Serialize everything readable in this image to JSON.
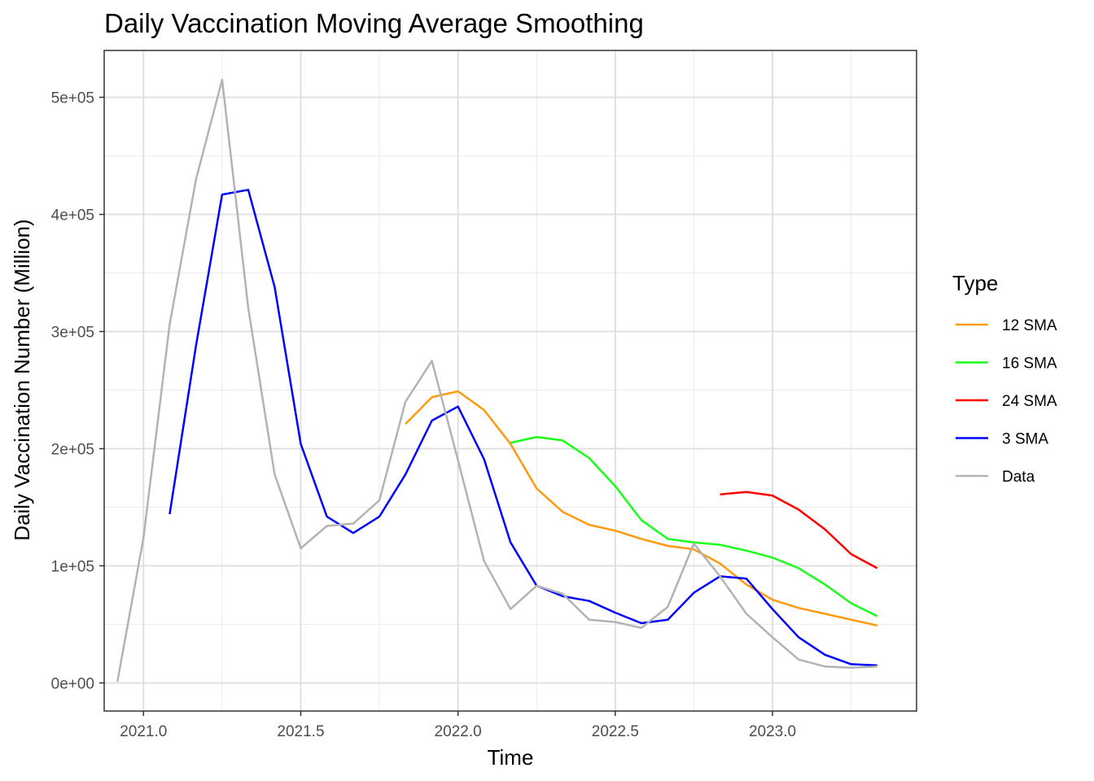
{
  "chart_data": {
    "type": "line",
    "title": "Daily Vaccination Moving Average Smoothing",
    "xlabel": "Time",
    "ylabel": "Daily Vaccination Number (Million)",
    "xlim": [
      2020.875,
      2023.458
    ],
    "ylim": [
      -24000,
      540000
    ],
    "x_ticks": [
      2021.0,
      2021.5,
      2022.0,
      2022.5,
      2023.0
    ],
    "x_tick_labels": [
      "2021.0",
      "2021.5",
      "2022.0",
      "2022.5",
      "2023.0"
    ],
    "y_ticks": [
      0,
      100000,
      200000,
      300000,
      400000,
      500000
    ],
    "y_tick_labels": [
      "0e+00",
      "1e+05",
      "2e+05",
      "3e+05",
      "4e+05",
      "5e+05"
    ],
    "grid": true,
    "legend": {
      "title": "Type",
      "position": "right"
    },
    "series": [
      {
        "name": "12 SMA",
        "color": "#ff9a0e",
        "points": [
          [
            2021.833,
            221000
          ],
          [
            2021.917,
            244000
          ],
          [
            2022.0,
            249000
          ],
          [
            2022.083,
            233000
          ],
          [
            2022.167,
            204000
          ],
          [
            2022.25,
            166000
          ],
          [
            2022.333,
            146000
          ],
          [
            2022.417,
            135000
          ],
          [
            2022.5,
            130000
          ],
          [
            2022.583,
            123000
          ],
          [
            2022.667,
            117000
          ],
          [
            2022.75,
            114000
          ],
          [
            2022.833,
            102000
          ],
          [
            2022.917,
            84000
          ],
          [
            2023.0,
            71000
          ],
          [
            2023.083,
            64000
          ],
          [
            2023.167,
            59000
          ],
          [
            2023.25,
            54000
          ],
          [
            2023.333,
            49000
          ]
        ]
      },
      {
        "name": "16 SMA",
        "color": "#1aff1a",
        "points": [
          [
            2022.167,
            205000
          ],
          [
            2022.25,
            210000
          ],
          [
            2022.333,
            207000
          ],
          [
            2022.417,
            192000
          ],
          [
            2022.5,
            168000
          ],
          [
            2022.583,
            139000
          ],
          [
            2022.667,
            123000
          ],
          [
            2022.75,
            120000
          ],
          [
            2022.833,
            118000
          ],
          [
            2022.917,
            113000
          ],
          [
            2023.0,
            107000
          ],
          [
            2023.083,
            98000
          ],
          [
            2023.167,
            84000
          ],
          [
            2023.25,
            68000
          ],
          [
            2023.333,
            57000
          ]
        ]
      },
      {
        "name": "24 SMA",
        "color": "#ff0000",
        "points": [
          [
            2022.833,
            161000
          ],
          [
            2022.917,
            163000
          ],
          [
            2023.0,
            160000
          ],
          [
            2023.083,
            148000
          ],
          [
            2023.167,
            131000
          ],
          [
            2023.25,
            110000
          ],
          [
            2023.333,
            98000
          ]
        ]
      },
      {
        "name": "3 SMA",
        "color": "#0000ff",
        "points": [
          [
            2021.083,
            144000
          ],
          [
            2021.167,
            288000
          ],
          [
            2021.25,
            417000
          ],
          [
            2021.333,
            421000
          ],
          [
            2021.417,
            338000
          ],
          [
            2021.5,
            204000
          ],
          [
            2021.583,
            142000
          ],
          [
            2021.667,
            128000
          ],
          [
            2021.75,
            142000
          ],
          [
            2021.833,
            178000
          ],
          [
            2021.917,
            224000
          ],
          [
            2022.0,
            236000
          ],
          [
            2022.083,
            191000
          ],
          [
            2022.167,
            120000
          ],
          [
            2022.25,
            83000
          ],
          [
            2022.333,
            74000
          ],
          [
            2022.417,
            70000
          ],
          [
            2022.5,
            60000
          ],
          [
            2022.583,
            51000
          ],
          [
            2022.667,
            54000
          ],
          [
            2022.75,
            77000
          ],
          [
            2022.833,
            91000
          ],
          [
            2022.917,
            89000
          ],
          [
            2023.0,
            63000
          ],
          [
            2023.083,
            39000
          ],
          [
            2023.167,
            24000
          ],
          [
            2023.25,
            16000
          ],
          [
            2023.333,
            15000
          ]
        ]
      },
      {
        "name": "Data",
        "color": "#b3b3b3",
        "points": [
          [
            2020.917,
            1000
          ],
          [
            2021.0,
            124000
          ],
          [
            2021.083,
            306000
          ],
          [
            2021.167,
            430000
          ],
          [
            2021.25,
            515000
          ],
          [
            2021.333,
            320000
          ],
          [
            2021.417,
            178000
          ],
          [
            2021.5,
            115000
          ],
          [
            2021.583,
            134000
          ],
          [
            2021.667,
            136000
          ],
          [
            2021.75,
            156000
          ],
          [
            2021.833,
            240000
          ],
          [
            2021.917,
            275000
          ],
          [
            2022.0,
            190000
          ],
          [
            2022.083,
            104000
          ],
          [
            2022.167,
            63000
          ],
          [
            2022.25,
            83000
          ],
          [
            2022.333,
            76000
          ],
          [
            2022.417,
            54000
          ],
          [
            2022.5,
            52000
          ],
          [
            2022.583,
            47000
          ],
          [
            2022.667,
            65000
          ],
          [
            2022.75,
            119000
          ],
          [
            2022.833,
            91000
          ],
          [
            2022.917,
            59000
          ],
          [
            2023.0,
            39000
          ],
          [
            2023.083,
            20000
          ],
          [
            2023.167,
            14000
          ],
          [
            2023.25,
            13000
          ],
          [
            2023.333,
            14000
          ]
        ]
      }
    ]
  }
}
